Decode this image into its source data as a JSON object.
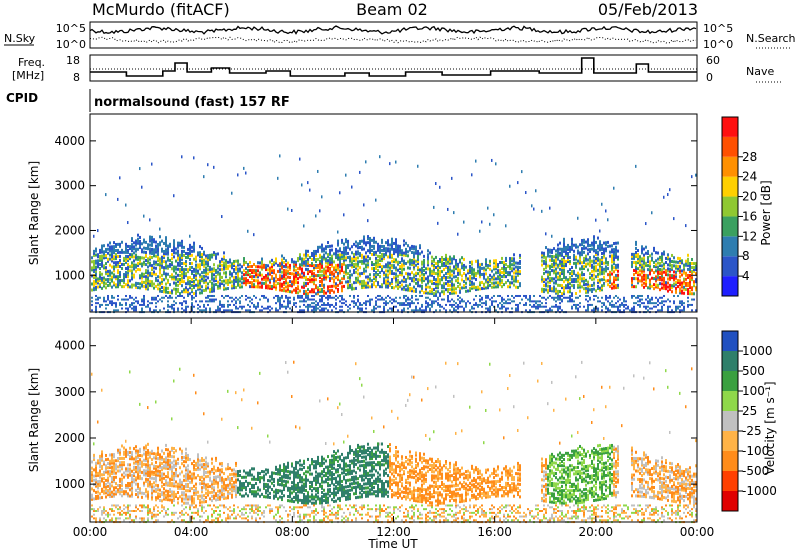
{
  "header": {
    "station": "McMurdo (fitACF)",
    "beam": "Beam 02",
    "date": "05/Feb/2013"
  },
  "noise_panel": {
    "left_label": "N.Sky",
    "right_label": "N.Search",
    "left_ticks": [
      "10^5",
      "10^0"
    ],
    "right_ticks": [
      "10^5",
      "10^0"
    ]
  },
  "freq_panel": {
    "left_label_1": "Freq.",
    "left_label_2": "[MHz]",
    "right_label": "Nave",
    "left_ticks": [
      "18",
      "8"
    ],
    "right_ticks": [
      "60",
      "0"
    ]
  },
  "cpid_panel": {
    "label": "CPID",
    "text": "normalsound (fast) 157 RF"
  },
  "colors": {
    "power_scale": [
      "#1f1fff",
      "#2b55c8",
      "#2e7db0",
      "#3aa060",
      "#8fc832",
      "#ffd000",
      "#ff9000",
      "#ff5000",
      "#ff1010"
    ],
    "velocity_scale": [
      "#e00000",
      "#ff4000",
      "#ff8c1a",
      "#ffb347",
      "#c0c0c0",
      "#8fd84a",
      "#3aa040",
      "#2f7f6a",
      "#2050c0"
    ]
  },
  "chart_data": [
    {
      "type": "heatmap",
      "title": "Power",
      "xlabel": "",
      "ylabel": "Slant Range [km]",
      "xlim": [
        "00:00",
        "24:00"
      ],
      "ylim": [
        180,
        4600
      ],
      "y_ticks": [
        "1000",
        "2000",
        "3000",
        "4000"
      ],
      "colorbar": {
        "label": "Power [dB]",
        "ticks": [
          "4",
          "8",
          "12",
          "16",
          "20",
          "24",
          "28"
        ],
        "range": [
          0,
          32
        ]
      }
    },
    {
      "type": "heatmap",
      "title": "Velocity",
      "xlabel": "Time UT",
      "ylabel": "Slant Range [km]",
      "xlim": [
        "00:00",
        "24:00"
      ],
      "ylim": [
        180,
        4600
      ],
      "x_ticks": [
        "00:00",
        "04:00",
        "08:00",
        "12:00",
        "16:00",
        "20:00",
        "00:00"
      ],
      "y_ticks": [
        "1000",
        "2000",
        "3000",
        "4000"
      ],
      "colorbar": {
        "label": "Velocity [m s⁻¹]",
        "ticks": [
          "1000",
          "500",
          "100",
          "25",
          "-25",
          "-100",
          "-500",
          "-1000"
        ]
      }
    }
  ]
}
